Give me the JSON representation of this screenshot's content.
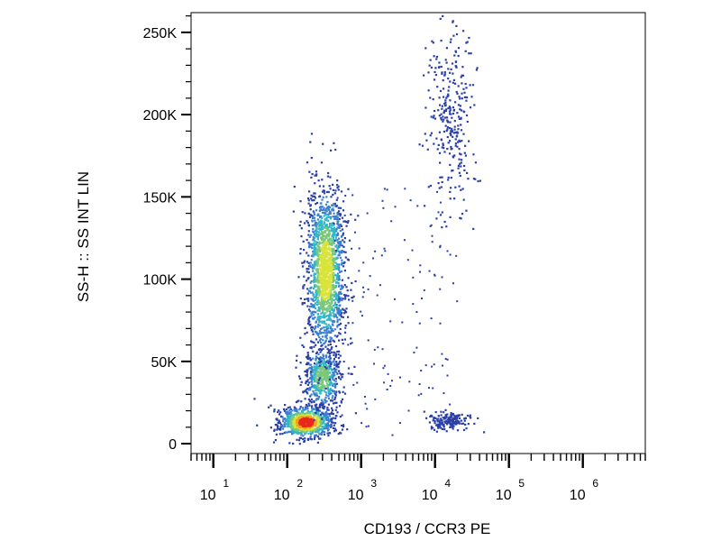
{
  "chart_data": {
    "type": "scatter",
    "subtype": "flow-cytometry-density-dot-plot",
    "xlabel": "CD193 / CCR3 PE",
    "ylabel": "SS-H :: SS INT LIN",
    "x_scale": "log",
    "y_scale": "linear",
    "xlim": [
      5,
      7000000
    ],
    "ylim": [
      -6000,
      262000
    ],
    "x_ticks": [
      {
        "value": 10,
        "base": "10",
        "exp": "1"
      },
      {
        "value": 100,
        "base": "10",
        "exp": "2"
      },
      {
        "value": 1000,
        "base": "10",
        "exp": "3"
      },
      {
        "value": 10000,
        "base": "10",
        "exp": "4"
      },
      {
        "value": 100000,
        "base": "10",
        "exp": "5"
      },
      {
        "value": 1000000,
        "base": "10",
        "exp": "6"
      }
    ],
    "y_ticks": [
      {
        "value": 0,
        "label": "0"
      },
      {
        "value": 50000,
        "label": "50K"
      },
      {
        "value": 100000,
        "label": "100K"
      },
      {
        "value": 150000,
        "label": "150K"
      },
      {
        "value": 200000,
        "label": "200K"
      },
      {
        "value": 250000,
        "label": "250K"
      }
    ],
    "color_scale": [
      "#2a3fa8",
      "#3a7fd0",
      "#33b6c6",
      "#7cc87a",
      "#d8e43a",
      "#f5a21e",
      "#e8281a"
    ],
    "grid": false,
    "populations": [
      {
        "x_center": 180,
        "x_log_sd": 0.16,
        "y_center": 13000,
        "y_sd": 4500,
        "density": "peak",
        "count": 900
      },
      {
        "x_center": 300,
        "x_log_sd": 0.11,
        "y_center": 40000,
        "y_sd": 9000,
        "density": "medium",
        "count": 550
      },
      {
        "x_center": 330,
        "x_log_sd": 0.12,
        "y_center": 105000,
        "y_sd": 25000,
        "density": "high",
        "count": 1700
      },
      {
        "x_center": 16000,
        "x_log_sd": 0.12,
        "y_center": 14000,
        "y_sd": 2500,
        "density": "low",
        "count": 170
      },
      {
        "x_center": 16000,
        "x_log_sd": 0.15,
        "y_center": 200000,
        "y_sd": 30000,
        "density": "low",
        "count": 300
      }
    ]
  }
}
